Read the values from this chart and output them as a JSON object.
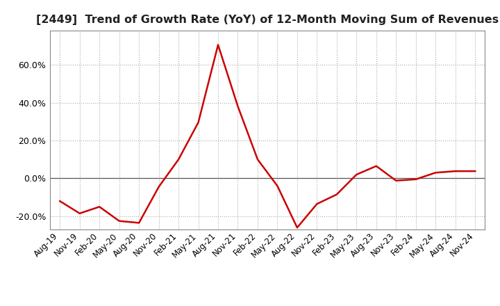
{
  "title": "[2449]  Trend of Growth Rate (YoY) of 12-Month Moving Sum of Revenues",
  "title_fontsize": 11.5,
  "line_color": "#cc0000",
  "background_color": "#ffffff",
  "grid_color": "#aaaaaa",
  "x_labels": [
    "Aug-19",
    "Nov-19",
    "Feb-20",
    "May-20",
    "Aug-20",
    "Nov-20",
    "Feb-21",
    "May-21",
    "Aug-21",
    "Nov-21",
    "Feb-22",
    "May-22",
    "Aug-22",
    "Nov-22",
    "Feb-23",
    "May-23",
    "Aug-23",
    "Nov-23",
    "Feb-24",
    "May-24",
    "Aug-24",
    "Nov-24"
  ],
  "y_values": [
    -0.12,
    -0.185,
    -0.15,
    -0.225,
    -0.235,
    -0.045,
    0.1,
    0.295,
    0.705,
    0.38,
    0.1,
    -0.04,
    -0.26,
    -0.135,
    -0.085,
    0.02,
    0.065,
    -0.012,
    -0.005,
    0.03,
    0.038,
    0.038
  ],
  "ylim": [
    -0.27,
    0.78
  ],
  "yticks": [
    -0.2,
    0.0,
    0.2,
    0.4,
    0.6
  ],
  "line_width": 1.8
}
